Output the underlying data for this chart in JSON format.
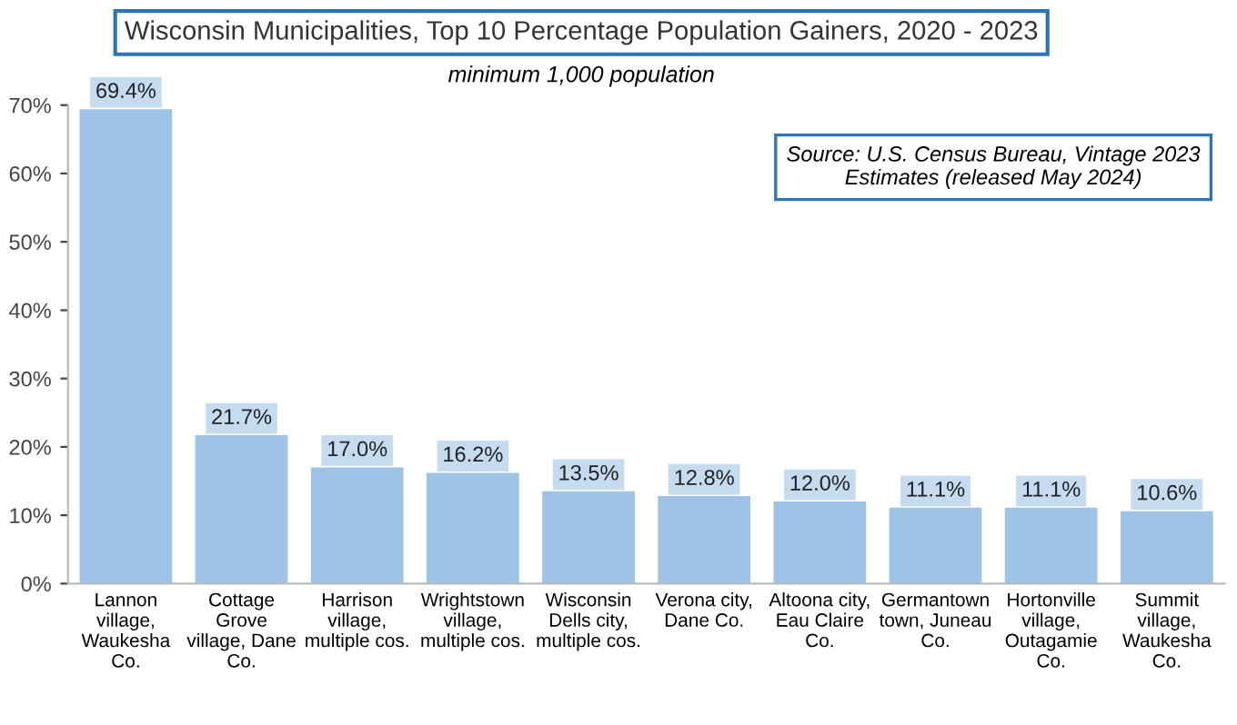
{
  "chart_data": {
    "type": "bar",
    "title": "Wisconsin Municipalities, Top 10 Percentage Population Gainers, 2020 - 2023",
    "subtitle": "minimum 1,000 population",
    "categories": [
      "Lannon\nvillage,\nWaukesha\nCo.",
      "Cottage\nGrove\nvillage, Dane\nCo.",
      "Harrison\nvillage,\nmultiple cos.",
      "Wrightstown\nvillage,\nmultiple cos.",
      "Wisconsin\nDells city,\nmultiple cos.",
      "Verona city,\nDane Co.",
      "Altoona city,\nEau Claire\nCo.",
      "Germantown\ntown, Juneau\nCo.",
      "Hortonville\nvillage,\nOutagamie\nCo.",
      "Summit\nvillage,\nWaukesha\nCo."
    ],
    "values": [
      69.4,
      21.7,
      17.0,
      16.2,
      13.5,
      12.8,
      12.0,
      11.1,
      11.1,
      10.6
    ],
    "value_labels": [
      "69.4%",
      "21.7%",
      "17.0%",
      "16.2%",
      "13.5%",
      "12.8%",
      "12.0%",
      "11.1%",
      "11.1%",
      "10.6%"
    ],
    "color": "#9dc3e6",
    "ylim": [
      0,
      70
    ],
    "yticks": [
      {
        "value": 0,
        "label": "0%"
      },
      {
        "value": 10,
        "label": "10%"
      },
      {
        "value": 20,
        "label": "20%"
      },
      {
        "value": 30,
        "label": "30%"
      },
      {
        "value": 40,
        "label": "40%"
      },
      {
        "value": 50,
        "label": "50%"
      },
      {
        "value": 60,
        "label": "60%"
      },
      {
        "value": 70,
        "label": "70%"
      }
    ],
    "annotations": [
      "Source: U.S. Census Bureau, Vintage 2023\nEstimates (released May 2024)"
    ],
    "grid": false
  }
}
